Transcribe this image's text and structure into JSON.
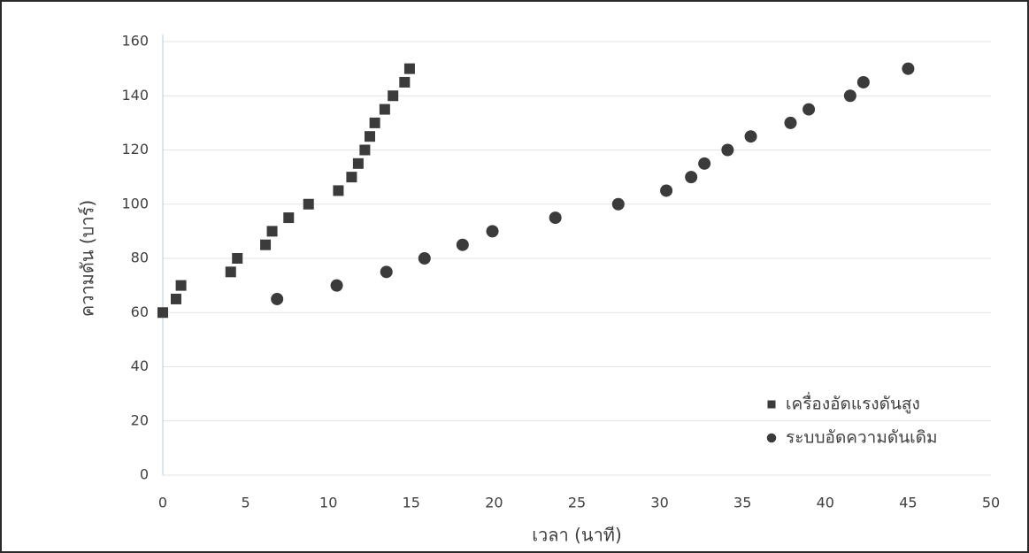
{
  "chart_data": {
    "type": "scatter",
    "x_label": "เวลา (นาที)",
    "y_label": "ความดัน (บาร์)",
    "xlim": [
      0,
      50
    ],
    "xticks": [
      0,
      5,
      10,
      15,
      20,
      25,
      30,
      35,
      40,
      45,
      50
    ],
    "ylim": [
      0,
      160
    ],
    "yticks": [
      0,
      20,
      40,
      60,
      80,
      100,
      120,
      140,
      160
    ],
    "grid": true,
    "legend": "lower right",
    "series": [
      {
        "name": "เครื่องอัดแรงดันสูง",
        "color": "#3b3b3b",
        "marker": "square",
        "x": [
          0,
          0.8,
          1.1,
          4.1,
          4.5,
          6.2,
          6.6,
          7.6,
          8.8,
          10.6,
          11.4,
          11.8,
          12.2,
          12.5,
          12.8,
          13.4,
          13.9,
          14.6,
          14.9
        ],
        "values": [
          60,
          65,
          70,
          75,
          80,
          85,
          90,
          95,
          100,
          105,
          110,
          115,
          120,
          125,
          130,
          135,
          140,
          145,
          150
        ]
      },
      {
        "name": "ระบบอัดความดันเดิม",
        "color": "#3b3b3b",
        "marker": "circle",
        "x": [
          6.9,
          10.5,
          13.5,
          15.8,
          18.1,
          19.9,
          23.7,
          27.5,
          30.4,
          31.9,
          32.7,
          34.1,
          35.5,
          37.9,
          39.0,
          41.5,
          42.3,
          45.0
        ],
        "values": [
          65,
          70,
          75,
          80,
          85,
          90,
          95,
          100,
          105,
          110,
          115,
          120,
          125,
          130,
          135,
          140,
          145,
          150
        ]
      }
    ]
  }
}
